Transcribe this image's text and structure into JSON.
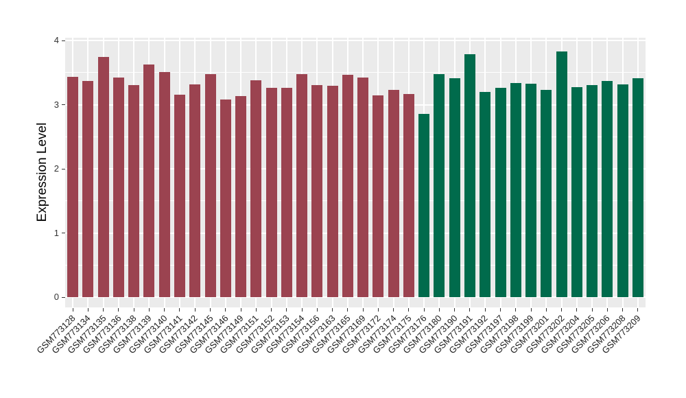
{
  "chart_data": {
    "type": "bar",
    "title": "",
    "ylabel": "Expression Level",
    "xlabel": "",
    "ylim": [
      0,
      4
    ],
    "yticks_major": [
      0,
      1,
      2,
      3,
      4
    ],
    "yticks_minor": [
      0.5,
      1.5,
      2.5,
      3.5
    ],
    "grid": "on",
    "legend_position": "none",
    "panel_bg": "#EBEBEB",
    "grid_color": "#FFFFFF",
    "group_colors": [
      "#9B4350",
      "#006B4C"
    ],
    "categories": [
      "GSM773128",
      "GSM773134",
      "GSM773135",
      "GSM773136",
      "GSM773138",
      "GSM773139",
      "GSM773140",
      "GSM773141",
      "GSM773142",
      "GSM773145",
      "GSM773146",
      "GSM773149",
      "GSM773151",
      "GSM773152",
      "GSM773153",
      "GSM773154",
      "GSM773156",
      "GSM773163",
      "GSM773165",
      "GSM773169",
      "GSM773172",
      "GSM773174",
      "GSM773175",
      "GSM773176",
      "GSM773180",
      "GSM773190",
      "GSM773191",
      "GSM773192",
      "GSM773197",
      "GSM773198",
      "GSM773199",
      "GSM773201",
      "GSM773202",
      "GSM773204",
      "GSM773205",
      "GSM773206",
      "GSM773208",
      "GSM773209"
    ],
    "values": [
      3.43,
      3.37,
      3.74,
      3.42,
      3.31,
      3.63,
      3.51,
      3.16,
      3.32,
      3.48,
      3.08,
      3.13,
      3.38,
      3.26,
      3.26,
      3.48,
      3.31,
      3.29,
      3.46,
      3.42,
      3.14,
      3.23,
      3.17,
      2.86,
      3.48,
      3.41,
      3.79,
      3.2,
      3.26,
      3.34,
      3.33,
      3.23,
      3.83,
      3.27,
      3.3,
      3.37,
      3.32,
      3.41
    ],
    "group_index": [
      0,
      0,
      0,
      0,
      0,
      0,
      0,
      0,
      0,
      0,
      0,
      0,
      0,
      0,
      0,
      0,
      0,
      0,
      0,
      0,
      0,
      0,
      0,
      1,
      1,
      1,
      1,
      1,
      1,
      1,
      1,
      1,
      1,
      1,
      1,
      1,
      1,
      1
    ]
  }
}
